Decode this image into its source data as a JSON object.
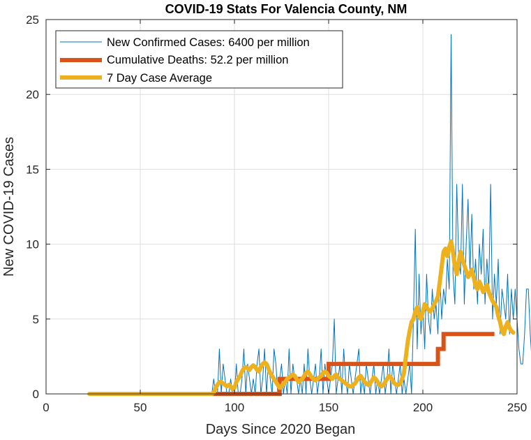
{
  "chart_data": {
    "type": "line",
    "title": "COVID-19 Stats For Valencia County, NM",
    "xlabel": "Days Since 2020 Began",
    "ylabel": "New COVID-19 Cases",
    "xlim": [
      0,
      250
    ],
    "ylim": [
      0,
      25
    ],
    "xticks": [
      "0",
      "50",
      "100",
      "150",
      "200",
      "250"
    ],
    "yticks": [
      "0",
      "5",
      "10",
      "15",
      "20",
      "25"
    ],
    "grid": true,
    "legend_position": "top-left",
    "colors": {
      "cases": "#0072bd",
      "deaths": "#d95319",
      "average": "#edb120"
    },
    "series": [
      {
        "name": "New Confirmed Cases: 6400 per million",
        "x_start": 23,
        "values": [
          0,
          0,
          0,
          0,
          0,
          0,
          0,
          0,
          0,
          0,
          0,
          0,
          0,
          0,
          0,
          0,
          0,
          0,
          0,
          0,
          0,
          0,
          0,
          0,
          0,
          0,
          0,
          0,
          0,
          0,
          0,
          0,
          0,
          0,
          0,
          0,
          0,
          0,
          0,
          0,
          0,
          0,
          0,
          0,
          0,
          0,
          0,
          0,
          0,
          0,
          0,
          0,
          0,
          0,
          0,
          0,
          0,
          0,
          0,
          0,
          0,
          0,
          0,
          0,
          0,
          0,
          1,
          0,
          0,
          3,
          0,
          2,
          1,
          0,
          0,
          1,
          0,
          0,
          2,
          0,
          0,
          1,
          3,
          0,
          2,
          1,
          0,
          1,
          0,
          2,
          3,
          0,
          1,
          3,
          0,
          2,
          1,
          0,
          3,
          2,
          0,
          1,
          2,
          0,
          1,
          0,
          3,
          0,
          2,
          1,
          1,
          0,
          1,
          0,
          2,
          0,
          3,
          1,
          0,
          1,
          2,
          0,
          1,
          3,
          0,
          2,
          1,
          0,
          1,
          2,
          5,
          0,
          1,
          2,
          0,
          3,
          1,
          0,
          2,
          1,
          0,
          1,
          2,
          3,
          0,
          1,
          0,
          2,
          1,
          0,
          1,
          2,
          0,
          1,
          0,
          1,
          2,
          0,
          1,
          3,
          0,
          2,
          1,
          0,
          1,
          2,
          0,
          1,
          0,
          1,
          2,
          0,
          5,
          11,
          3,
          8,
          4,
          6,
          3,
          8,
          5,
          4,
          7,
          5,
          6,
          4,
          8,
          5,
          7,
          6,
          9,
          7,
          24,
          8,
          6,
          14,
          9,
          8,
          14,
          6,
          10,
          13,
          8,
          12,
          7,
          9,
          6,
          10,
          8,
          11,
          6,
          9,
          7,
          14,
          5,
          8,
          6,
          9,
          4,
          7,
          6,
          5,
          8,
          4,
          7,
          5,
          7,
          5,
          3,
          2,
          2,
          4,
          7,
          7,
          4,
          2,
          0,
          0
        ]
      },
      {
        "name": "Cumulative Deaths: 52.2 per million",
        "steps": [
          [
            23,
            0
          ],
          [
            124,
            0
          ],
          [
            124,
            1
          ],
          [
            150,
            1
          ],
          [
            150,
            2
          ],
          [
            208,
            2
          ],
          [
            208,
            3
          ],
          [
            211,
            3
          ],
          [
            211,
            4
          ],
          [
            238,
            4
          ]
        ]
      },
      {
        "name": "7 Day Case Average",
        "x_start": 23,
        "values": [
          0,
          0,
          0,
          0,
          0,
          0,
          0,
          0,
          0,
          0,
          0,
          0,
          0,
          0,
          0,
          0,
          0,
          0,
          0,
          0,
          0,
          0,
          0,
          0,
          0,
          0,
          0,
          0,
          0,
          0,
          0,
          0,
          0,
          0,
          0,
          0,
          0,
          0,
          0,
          0,
          0,
          0,
          0,
          0,
          0,
          0,
          0,
          0,
          0,
          0,
          0,
          0,
          0,
          0,
          0,
          0,
          0,
          0,
          0,
          0,
          0,
          0,
          0,
          0,
          0,
          0,
          0.1,
          0.4,
          0.6,
          0.8,
          0.8,
          0.7,
          0.6,
          0.5,
          0.6,
          0.5,
          0.3,
          0.4,
          0.8,
          1.0,
          1.2,
          1.5,
          1.7,
          1.8,
          1.7,
          1.6,
          1.8,
          1.9,
          1.8,
          1.6,
          1.5,
          1.8,
          2.0,
          2.1,
          2.0,
          1.7,
          1.4,
          1.2,
          1.0,
          0.8,
          0.6,
          0.4,
          0.5,
          0.7,
          0.8,
          1.0,
          1.1,
          1.2,
          1.3,
          1.2,
          1.0,
          0.8,
          0.9,
          1.0,
          1.2,
          1.4,
          1.5,
          1.3,
          1.1,
          1.0,
          0.9,
          1.0,
          1.1,
          1.2,
          1.4,
          1.5,
          1.4,
          1.2,
          1.1,
          1.0,
          1.2,
          1.3,
          1.1,
          1.0,
          0.9,
          0.8,
          0.7,
          0.6,
          0.5,
          0.5,
          0.6,
          0.7,
          0.9,
          1.1,
          1.2,
          1.0,
          0.8,
          0.7,
          0.6,
          0.7,
          0.9,
          1.1,
          1.0,
          0.8,
          0.6,
          0.5,
          0.6,
          0.8,
          1.0,
          1.2,
          1.1,
          0.9,
          0.7,
          0.6,
          0.6,
          0.7,
          1.0,
          1.4,
          2.5,
          3.5,
          4.2,
          4.8,
          5.0,
          5.5,
          5.8,
          5.2,
          5.0,
          5.5,
          6.0,
          5.8,
          5.6,
          5.5,
          5.7,
          6.0,
          6.2,
          6.5,
          7.5,
          8.5,
          9.5,
          9.7,
          9.2,
          9.8,
          10.2,
          9.5,
          8.5,
          8.0,
          8.8,
          9.5,
          9.0,
          8.6,
          8.2,
          7.8,
          8.0,
          8.3,
          7.8,
          7.2,
          7.0,
          7.5,
          7.2,
          6.8,
          7.0,
          7.3,
          6.8,
          6.5,
          6.2,
          6.0,
          5.8,
          5.2,
          4.8,
          4.2,
          4.0,
          4.5,
          4.8,
          4.4,
          4.2,
          4.1
        ]
      }
    ]
  }
}
